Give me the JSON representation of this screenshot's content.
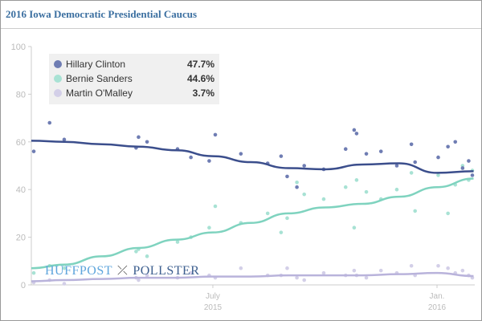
{
  "title": "2016 Iowa Democratic Presidential Caucus",
  "logo": {
    "left": "HUFFPOST",
    "right": "POLLSTER"
  },
  "chart_data": {
    "type": "scatter",
    "title": "2016 Iowa Democratic Presidential Caucus",
    "xlabel": "",
    "ylabel": "",
    "ylim": [
      0,
      100
    ],
    "xlim": [
      "2015-02-02",
      "2016-02-01"
    ],
    "yticks": [
      "0",
      "20",
      "40",
      "60",
      "80",
      "100"
    ],
    "xticks": [
      {
        "date": "2015-07-01",
        "label1": "July",
        "label2": "2015"
      },
      {
        "date": "2016-01-01",
        "label1": "Jan.",
        "label2": "2016"
      }
    ],
    "legend_placement": "top-left",
    "poll_dates": [
      "2015-02-04",
      "2015-02-17",
      "2015-03-01",
      "2015-04-29",
      "2015-05-01",
      "2015-05-08",
      "2015-06-02",
      "2015-06-13",
      "2015-06-28",
      "2015-07-03",
      "2015-07-24",
      "2015-08-15",
      "2015-08-26",
      "2015-08-31",
      "2015-09-08",
      "2015-09-14",
      "2015-09-30",
      "2015-10-18",
      "2015-10-25",
      "2015-10-27",
      "2015-11-04",
      "2015-11-16",
      "2015-11-29",
      "2015-12-11",
      "2015-12-14",
      "2016-01-02",
      "2016-01-10",
      "2016-01-16",
      "2016-01-22",
      "2016-01-27",
      "2016-01-30"
    ],
    "trend_dates": [
      "2015-02-02",
      "2015-03-01",
      "2015-04-01",
      "2015-05-01",
      "2015-06-01",
      "2015-07-01",
      "2015-08-01",
      "2015-09-01",
      "2015-10-01",
      "2015-11-01",
      "2015-12-01",
      "2016-01-01",
      "2016-01-31"
    ],
    "series": [
      {
        "name": "Hillary Clinton",
        "latest": "47.7%",
        "color": "#3b4e8c",
        "dot_color": "#6f7db3",
        "polls": [
          56,
          68,
          61,
          57.5,
          62,
          60,
          57,
          53.5,
          52,
          63,
          55,
          51,
          54,
          45.5,
          41,
          50,
          48.5,
          57,
          65,
          63.5,
          55,
          56,
          50,
          59,
          51.5,
          53.5,
          58,
          60,
          49,
          52,
          46
        ],
        "trend": [
          60.5,
          60,
          59,
          58,
          56.5,
          54,
          51.5,
          49,
          48.5,
          50.5,
          51,
          47,
          47.7
        ]
      },
      {
        "name": "Bernie Sanders",
        "latest": "44.6%",
        "color": "#7fd3bf",
        "dot_color": "#a8e2d4",
        "polls": [
          5,
          8,
          7,
          14,
          15,
          12,
          18,
          20,
          24,
          33,
          26,
          30,
          22,
          28,
          43,
          38,
          36,
          41,
          24,
          44,
          39,
          36,
          40,
          47,
          31,
          46,
          30,
          42,
          50,
          44,
          48
        ],
        "trend": [
          7,
          8.5,
          12,
          15.5,
          19,
          22,
          26,
          30,
          32.5,
          34,
          37,
          41,
          44.6
        ]
      },
      {
        "name": "Martin O'Malley",
        "latest": "3.7%",
        "color": "#b9b3db",
        "dot_color": "#d3cfe8",
        "polls": [
          1,
          2,
          0.5,
          3,
          2,
          4,
          3,
          5,
          4,
          3,
          7,
          4,
          4,
          7,
          3,
          2,
          5,
          4,
          6,
          4,
          3,
          6,
          5,
          8,
          4,
          8,
          7,
          5,
          6,
          4,
          3
        ],
        "trend": [
          1.5,
          2,
          2.5,
          3,
          3,
          3.5,
          3.5,
          4,
          4,
          4,
          4.5,
          5,
          3.7
        ]
      }
    ]
  }
}
